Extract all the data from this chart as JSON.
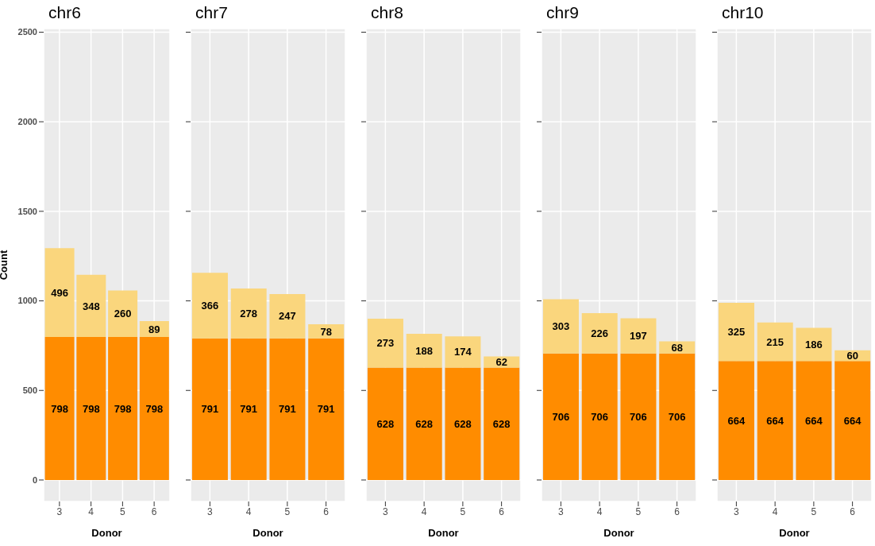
{
  "chart_data": [
    {
      "type": "bar",
      "title": "chr6",
      "xlabel": "Donor",
      "ylabel": "Count",
      "categories": [
        "3",
        "4",
        "5",
        "6"
      ],
      "stacked": true,
      "data_labels": true,
      "grid": true,
      "ylim": [
        -120,
        2520
      ],
      "yticks": [
        0,
        500,
        1000,
        1500,
        2000,
        2500
      ],
      "series": [
        {
          "color": "#ff8c00",
          "values": [
            798,
            798,
            798,
            798
          ]
        },
        {
          "color": "#fad67d",
          "values": [
            496,
            348,
            260,
            89
          ]
        }
      ]
    },
    {
      "type": "bar",
      "title": "chr7",
      "xlabel": "Donor",
      "categories": [
        "3",
        "4",
        "5",
        "6"
      ],
      "stacked": true,
      "data_labels": true,
      "grid": true,
      "tick_labels": "x",
      "ylim": [
        -120,
        2520
      ],
      "yticks": [
        0,
        500,
        1000,
        1500,
        2000,
        2500
      ],
      "series": [
        {
          "color": "#ff8c00",
          "values": [
            791,
            791,
            791,
            791
          ]
        },
        {
          "color": "#fad67d",
          "values": [
            366,
            278,
            247,
            78
          ]
        }
      ]
    },
    {
      "type": "bar",
      "title": "chr8",
      "xlabel": "Donor",
      "categories": [
        "3",
        "4",
        "5",
        "6"
      ],
      "stacked": true,
      "data_labels": true,
      "grid": true,
      "tick_labels": "x",
      "ylim": [
        -120,
        2520
      ],
      "yticks": [
        0,
        500,
        1000,
        1500,
        2000,
        2500
      ],
      "series": [
        {
          "color": "#ff8c00",
          "values": [
            628,
            628,
            628,
            628
          ]
        },
        {
          "color": "#fad67d",
          "values": [
            273,
            188,
            174,
            62
          ]
        }
      ]
    },
    {
      "type": "bar",
      "title": "chr9",
      "xlabel": "Donor",
      "categories": [
        "3",
        "4",
        "5",
        "6"
      ],
      "stacked": true,
      "data_labels": true,
      "grid": true,
      "tick_labels": "x",
      "ylim": [
        -120,
        2520
      ],
      "yticks": [
        0,
        500,
        1000,
        1500,
        2000,
        2500
      ],
      "series": [
        {
          "color": "#ff8c00",
          "values": [
            706,
            706,
            706,
            706
          ]
        },
        {
          "color": "#fad67d",
          "values": [
            303,
            226,
            197,
            68
          ]
        }
      ]
    },
    {
      "type": "bar",
      "title": "chr10",
      "xlabel": "Donor",
      "categories": [
        "3",
        "4",
        "5",
        "6"
      ],
      "stacked": true,
      "data_labels": true,
      "grid": true,
      "tick_labels": "x",
      "ylim": [
        -120,
        2520
      ],
      "yticks": [
        0,
        500,
        1000,
        1500,
        2000,
        2500
      ],
      "series": [
        {
          "color": "#ff8c00",
          "values": [
            664,
            664,
            664,
            664
          ]
        },
        {
          "color": "#fad67d",
          "values": [
            325,
            215,
            186,
            60
          ]
        }
      ]
    }
  ]
}
